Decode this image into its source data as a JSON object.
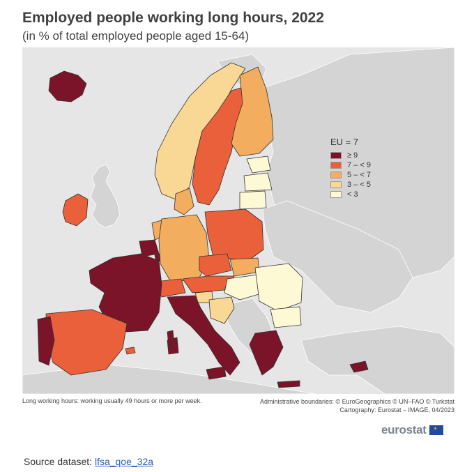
{
  "title": "Employed people working long hours, 2022",
  "subtitle": "(in % of total employed people aged 15-64)",
  "legend": {
    "title": "EU = 7",
    "items": [
      {
        "label": "≥ 9",
        "color": "#7b1428"
      },
      {
        "label": "7 – < 9",
        "color": "#e9603a"
      },
      {
        "label": "5 – < 7",
        "color": "#f2ad5e"
      },
      {
        "label": "3 – < 5",
        "color": "#f8d894"
      },
      {
        "label": "< 3",
        "color": "#fdf9d4"
      }
    ]
  },
  "map_colors": {
    "non_eu_land": "#d4d4d4",
    "sea": "#e6e6e6",
    "border": "#333333"
  },
  "regions": [
    {
      "name": "Iceland",
      "class": "≥ 9"
    },
    {
      "name": "Ireland",
      "class": "7 – < 9"
    },
    {
      "name": "France",
      "class": "≥ 9"
    },
    {
      "name": "Portugal",
      "class": "≥ 9"
    },
    {
      "name": "Spain",
      "class": "7 – < 9"
    },
    {
      "name": "Italy",
      "class": "≥ 9"
    },
    {
      "name": "Greece",
      "class": "≥ 9"
    },
    {
      "name": "Cyprus",
      "class": "≥ 9"
    },
    {
      "name": "Switzerland",
      "class": "7 – < 9"
    },
    {
      "name": "Belgium",
      "class": "≥ 9"
    },
    {
      "name": "Luxembourg",
      "class": "≥ 9"
    },
    {
      "name": "Netherlands",
      "class": "5 – < 7"
    },
    {
      "name": "Germany",
      "class": "5 – < 7"
    },
    {
      "name": "Denmark",
      "class": "5 – < 7"
    },
    {
      "name": "Norway",
      "class": "3 – < 5"
    },
    {
      "name": "Sweden",
      "class": "7 – < 9"
    },
    {
      "name": "Finland",
      "class": "5 – < 7"
    },
    {
      "name": "Estonia",
      "class": "< 3"
    },
    {
      "name": "Latvia",
      "class": "< 3"
    },
    {
      "name": "Lithuania",
      "class": "< 3"
    },
    {
      "name": "Poland",
      "class": "7 – < 9"
    },
    {
      "name": "Czechia",
      "class": "7 – < 9"
    },
    {
      "name": "Austria",
      "class": "7 – < 9"
    },
    {
      "name": "Slovakia",
      "class": "5 – < 7"
    },
    {
      "name": "Hungary",
      "class": "< 3"
    },
    {
      "name": "Slovenia",
      "class": "3 – < 5"
    },
    {
      "name": "Croatia",
      "class": "3 – < 5"
    },
    {
      "name": "Romania",
      "class": "< 3"
    },
    {
      "name": "Bulgaria",
      "class": "< 3"
    }
  ],
  "footnote": "Long working hours: working usually 49 hours or more per week.",
  "credits": {
    "line1": "Administrative boundaries: © EuroGeographics © UN–FAO © Turkstat",
    "line2": "Cartography: Eurostat – IMAGE, 04/2023"
  },
  "logo": {
    "text": "eurostat"
  },
  "source": {
    "label": "Source dataset:",
    "link": "lfsa_qoe_32a"
  }
}
